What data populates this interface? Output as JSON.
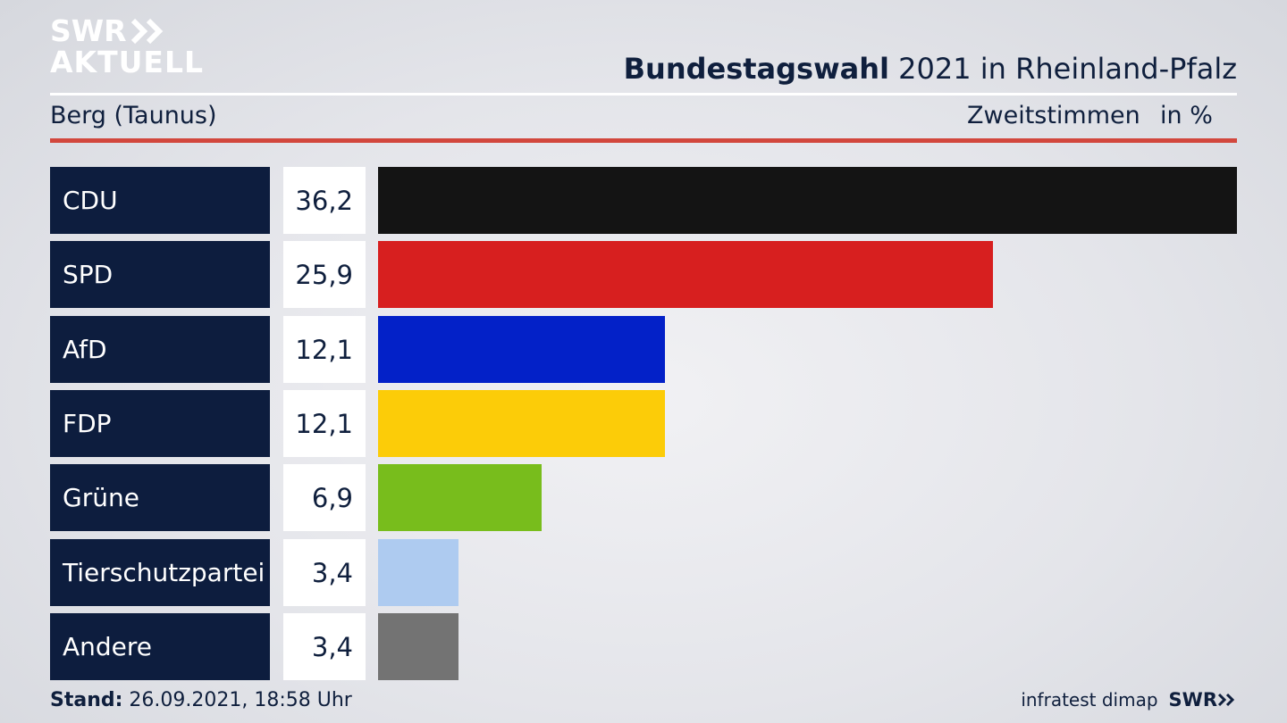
{
  "brand": {
    "line1": "SWR",
    "line2": "AKTUELL",
    "logo_color": "#ffffff"
  },
  "header": {
    "title_bold": "Bundestagswahl",
    "title_rest": "2021 in Rheinland-Pfalz",
    "subtitle": "Berg (Taunus)",
    "metric": "Zweitstimmen",
    "unit": "in %"
  },
  "chart_data": {
    "type": "bar",
    "orientation": "horizontal",
    "categories": [
      "CDU",
      "SPD",
      "AfD",
      "FDP",
      "Grüne",
      "Tierschutzpartei",
      "Andere"
    ],
    "values": [
      36.2,
      25.9,
      12.1,
      12.1,
      6.9,
      3.4,
      3.4
    ],
    "value_labels": [
      "36,2",
      "25,9",
      "12,1",
      "12,1",
      "6,9",
      "3,4",
      "3,4"
    ],
    "colors": [
      "#141414",
      "#d71f1f",
      "#0321c8",
      "#fccc08",
      "#78bd1c",
      "#aecbf0",
      "#737373"
    ]
  },
  "footer": {
    "stand_label": "Stand:",
    "stand_value": "26.09.2021, 18:58 Uhr",
    "source": "infratest dimap",
    "brand": "SWR"
  }
}
